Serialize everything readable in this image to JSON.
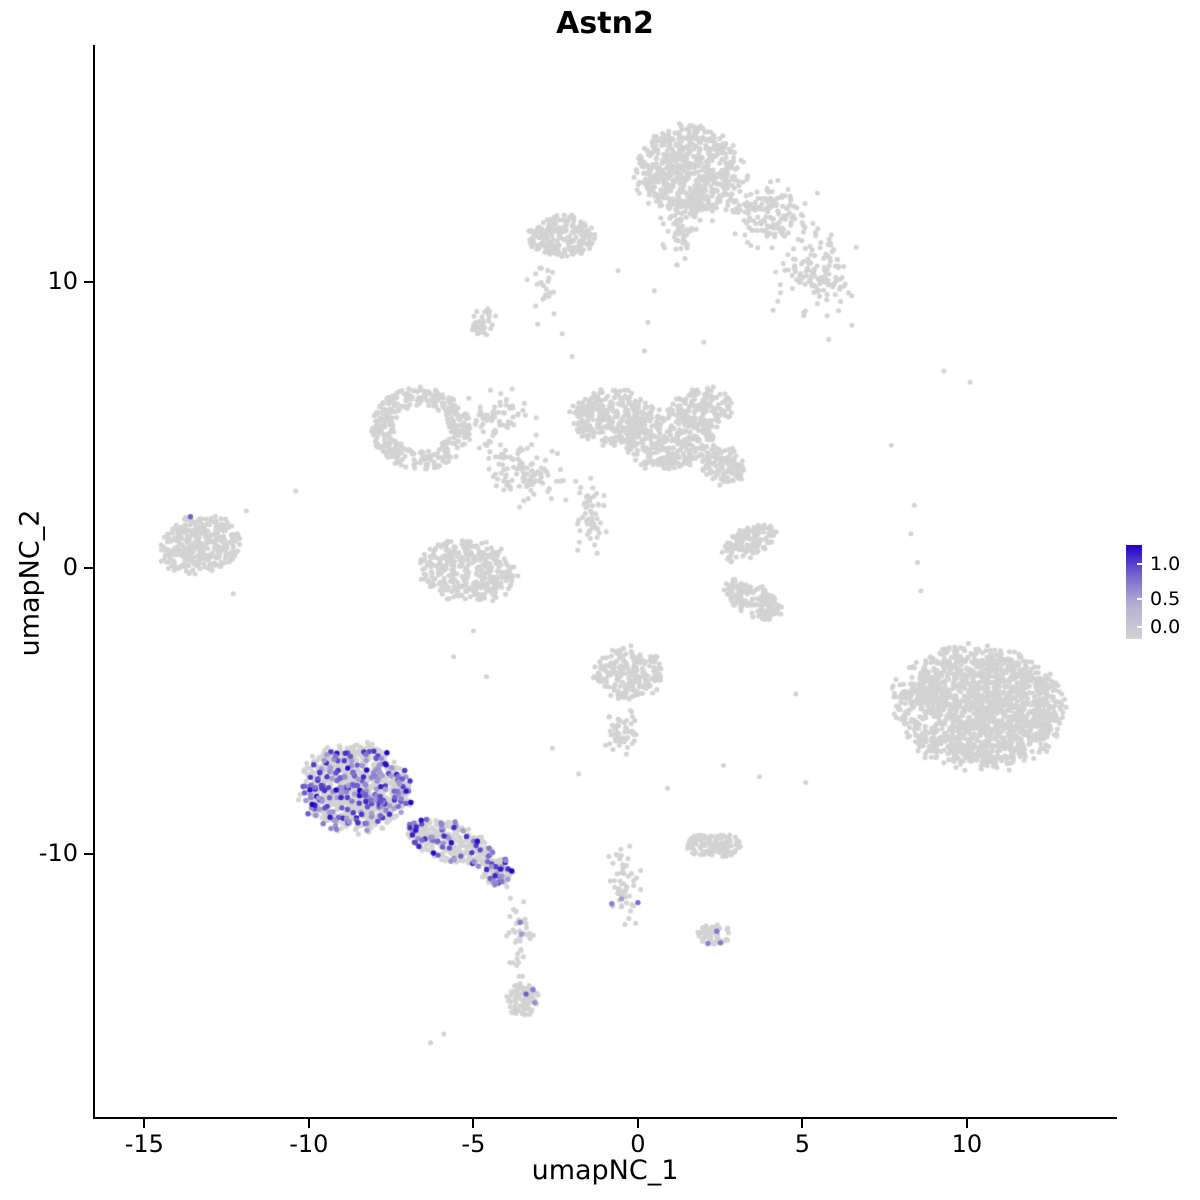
{
  "title": "Astn2",
  "axes": {
    "xlabel": "umapNC_1",
    "ylabel": "umapNC_2",
    "x_ticks": [
      -15,
      -10,
      -5,
      0,
      5,
      10
    ],
    "y_ticks": [
      -10,
      0,
      10
    ],
    "xlim": [
      -16.5,
      14.5
    ],
    "ylim": [
      -19.2,
      18.3
    ]
  },
  "legend": {
    "labels": [
      "1.0",
      "0.5",
      "0.0"
    ],
    "high_value": 1.0,
    "low_value": 0.0
  },
  "colors": {
    "background": "#ffffff",
    "axis": "#000000",
    "text": "#000000",
    "point_low": "#d3d3d3",
    "point_high": "#2100c8"
  },
  "chart_data": {
    "type": "scatter",
    "title": "Astn2",
    "xlabel": "umapNC_1",
    "ylabel": "umapNC_2",
    "xlim": [
      -16.5,
      14.5
    ],
    "ylim": [
      -19.2,
      18.3
    ],
    "legend_title": "",
    "legend_ticks": [
      1.0,
      0.5,
      0.0
    ],
    "point_color_low": "#d3d3d3",
    "point_color_high": "#2100c8",
    "description": "UMAP feature plot of Astn2 expression; expression restricted mostly to the lower-left cluster",
    "clusters": [
      {
        "name": "top-main",
        "cx": 1.6,
        "cy": 13.9,
        "rx": 1.7,
        "ry": 1.6,
        "rot": 0,
        "n": 650,
        "shape": "disc",
        "expr": 0
      },
      {
        "name": "top-main-stem",
        "cx": 1.3,
        "cy": 11.8,
        "rx": 0.5,
        "ry": 1.0,
        "rot": 0,
        "n": 60,
        "shape": "gauss",
        "expr": 0
      },
      {
        "name": "top-right-arm-a",
        "cx": 3.9,
        "cy": 12.4,
        "rx": 1.2,
        "ry": 1.0,
        "rot": -20,
        "n": 150,
        "shape": "gauss",
        "expr": 0
      },
      {
        "name": "top-right-arm-b",
        "cx": 5.3,
        "cy": 10.4,
        "rx": 1.1,
        "ry": 1.3,
        "rot": 0,
        "n": 130,
        "shape": "gauss",
        "expr": 0
      },
      {
        "name": "top-left",
        "cx": -2.3,
        "cy": 11.6,
        "rx": 1.05,
        "ry": 0.75,
        "rot": 0,
        "n": 230,
        "shape": "disc",
        "expr": 0
      },
      {
        "name": "top-left-trail",
        "cx": -2.9,
        "cy": 9.6,
        "rx": 0.4,
        "ry": 0.9,
        "rot": 0,
        "n": 22,
        "shape": "gauss",
        "expr": 0
      },
      {
        "name": "upper-left-knob",
        "cx": -4.7,
        "cy": 8.6,
        "rx": 0.4,
        "ry": 0.55,
        "rot": 0,
        "n": 35,
        "shape": "disc",
        "expr": 0
      },
      {
        "name": "mid-left-arm",
        "cx": -6.6,
        "cy": 4.9,
        "rx": 1.5,
        "ry": 1.45,
        "rot": 0,
        "n": 380,
        "shape": "ring",
        "expr": 0
      },
      {
        "name": "mid-center-a",
        "cx": -0.8,
        "cy": 5.3,
        "rx": 1.3,
        "ry": 1.0,
        "rot": 0,
        "n": 300,
        "shape": "disc",
        "expr": 0
      },
      {
        "name": "mid-center-b",
        "cx": 0.9,
        "cy": 4.5,
        "rx": 1.4,
        "ry": 1.1,
        "rot": 0,
        "n": 320,
        "shape": "disc",
        "expr": 0
      },
      {
        "name": "mid-center-c",
        "cx": 2.0,
        "cy": 5.6,
        "rx": 0.9,
        "ry": 0.8,
        "rot": 0,
        "n": 150,
        "shape": "disc",
        "expr": 0
      },
      {
        "name": "mid-center-knob",
        "cx": 2.6,
        "cy": 3.6,
        "rx": 0.7,
        "ry": 0.7,
        "rot": 0,
        "n": 110,
        "shape": "disc",
        "expr": 0
      },
      {
        "name": "mid-bridge-a",
        "cx": -4.3,
        "cy": 5.3,
        "rx": 1.0,
        "ry": 0.8,
        "rot": 0,
        "n": 70,
        "shape": "gauss",
        "expr": 0
      },
      {
        "name": "mid-bridge-b",
        "cx": -3.5,
        "cy": 3.3,
        "rx": 1.3,
        "ry": 0.9,
        "rot": -25,
        "n": 110,
        "shape": "gauss",
        "expr": 0
      },
      {
        "name": "mid-left-lower",
        "cx": -5.2,
        "cy": -0.1,
        "rx": 1.5,
        "ry": 1.1,
        "rot": -10,
        "n": 380,
        "shape": "disc",
        "expr": 0
      },
      {
        "name": "mid-stem",
        "cx": -1.4,
        "cy": 1.9,
        "rx": 0.45,
        "ry": 1.2,
        "rot": 0,
        "n": 55,
        "shape": "gauss",
        "expr": 0
      },
      {
        "name": "far-left",
        "cx": -13.3,
        "cy": 0.8,
        "rx": 1.35,
        "ry": 1.0,
        "rot": 15,
        "n": 330,
        "shape": "disc",
        "expr": 0
      },
      {
        "name": "right-band-a",
        "cx": 3.4,
        "cy": 0.9,
        "rx": 1.0,
        "ry": 0.5,
        "rot": 35,
        "n": 130,
        "shape": "disc",
        "expr": 0
      },
      {
        "name": "right-band-b",
        "cx": 3.5,
        "cy": -1.1,
        "rx": 1.0,
        "ry": 0.55,
        "rot": -35,
        "n": 150,
        "shape": "disc",
        "expr": 0
      },
      {
        "name": "right-big",
        "cx": 10.4,
        "cy": -4.9,
        "rx": 2.6,
        "ry": 2.15,
        "rot": -10,
        "n": 1650,
        "shape": "disc",
        "expr": 0
      },
      {
        "name": "bottomleft-core",
        "cx": -8.6,
        "cy": -7.7,
        "rx": 1.7,
        "ry": 1.55,
        "rot": 0,
        "n": 950,
        "shape": "disc",
        "expr": 0.22
      },
      {
        "name": "bottomleft-tail",
        "cx": -5.7,
        "cy": -9.6,
        "rx": 1.4,
        "ry": 0.7,
        "rot": -22,
        "n": 280,
        "shape": "disc",
        "expr": 0.2
      },
      {
        "name": "bottomleft-knob",
        "cx": -4.3,
        "cy": -10.6,
        "rx": 0.55,
        "ry": 0.5,
        "rot": 0,
        "n": 130,
        "shape": "disc",
        "expr": 0.25
      },
      {
        "name": "below-trail",
        "cx": -3.6,
        "cy": -12.7,
        "rx": 0.35,
        "ry": 1.3,
        "rot": 0,
        "n": 42,
        "shape": "gauss",
        "expr": 0.05
      },
      {
        "name": "bottom-knot",
        "cx": -3.5,
        "cy": -15.1,
        "rx": 0.5,
        "ry": 0.6,
        "rot": 0,
        "n": 90,
        "shape": "disc",
        "expr": 0.02
      },
      {
        "name": "center-low",
        "cx": -0.3,
        "cy": -3.7,
        "rx": 1.05,
        "ry": 0.95,
        "rot": 0,
        "n": 210,
        "shape": "disc",
        "expr": 0
      },
      {
        "name": "center-low-stem",
        "cx": -0.5,
        "cy": -5.9,
        "rx": 0.4,
        "ry": 1.0,
        "rot": 0,
        "n": 55,
        "shape": "gauss",
        "expr": 0
      },
      {
        "name": "center-trail",
        "cx": -0.4,
        "cy": -10.9,
        "rx": 0.4,
        "ry": 1.3,
        "rot": 0,
        "n": 55,
        "shape": "gauss",
        "expr": 0.03
      },
      {
        "name": "small-right-bottom",
        "cx": 2.3,
        "cy": -12.8,
        "rx": 0.55,
        "ry": 0.4,
        "rot": 0,
        "n": 55,
        "shape": "disc",
        "expr": 0.03
      },
      {
        "name": "small-mid-right",
        "cx": 2.3,
        "cy": -9.7,
        "rx": 0.85,
        "ry": 0.45,
        "rot": 0,
        "n": 130,
        "shape": "disc",
        "expr": 0
      }
    ],
    "singles": [
      [
        -10.4,
        2.7
      ],
      [
        -11.9,
        2.0
      ],
      [
        -12.3,
        -0.9
      ],
      [
        3.7,
        -7.3
      ],
      [
        5.1,
        -7.5
      ],
      [
        0.9,
        -7.7
      ],
      [
        9.3,
        6.9
      ],
      [
        10.1,
        6.5
      ],
      [
        7.7,
        4.3
      ],
      [
        -6.3,
        -16.6
      ],
      [
        -5.9,
        -16.3
      ],
      [
        2.0,
        7.9
      ],
      [
        -2.3,
        8.2
      ],
      [
        -2.0,
        7.4
      ],
      [
        0.5,
        9.7
      ],
      [
        0.3,
        8.6
      ],
      [
        0.2,
        7.6
      ],
      [
        4.8,
        -4.4
      ],
      [
        2.6,
        -6.9
      ],
      [
        -5.0,
        -2.2
      ],
      [
        -5.6,
        -3.1
      ],
      [
        -4.6,
        -3.8
      ],
      [
        -2.6,
        -6.3
      ],
      [
        -1.8,
        -7.2
      ],
      [
        6.1,
        9.0
      ],
      [
        6.5,
        8.5
      ],
      [
        5.8,
        8.0
      ],
      [
        8.4,
        2.2
      ],
      [
        8.3,
        1.2
      ],
      [
        8.5,
        0.2
      ],
      [
        8.6,
        -0.8
      ],
      [
        -0.6,
        10.4
      ],
      [
        1.2,
        10.6
      ]
    ],
    "expressing_singles": [
      [
        -13.6,
        1.8,
        0.55
      ],
      [
        0.0,
        -11.7,
        0.5
      ],
      [
        2.4,
        -12.7,
        0.45
      ],
      [
        -3.4,
        -14.9,
        0.55
      ],
      [
        -6.9,
        -8.2,
        1.0
      ]
    ]
  }
}
